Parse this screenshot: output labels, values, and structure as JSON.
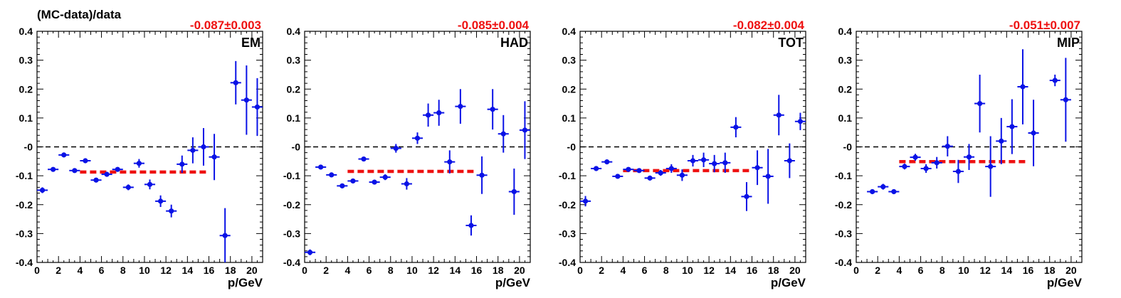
{
  "figure": {
    "ylabel": "(MC-data)/data"
  },
  "colors": {
    "points": "#0a12e6",
    "fit": "#ee1111",
    "zero_line": "#000000"
  },
  "chart_data": [
    {
      "type": "scatter",
      "panel_label": "EM",
      "fit_label": "-0.087±0.003",
      "fit_value": -0.087,
      "fit_x_range": [
        4,
        16
      ],
      "xlabel": "p/GeV",
      "xlim": [
        0,
        21
      ],
      "ylim": [
        -0.4,
        0.4
      ],
      "x_ticks": [
        0,
        2,
        4,
        6,
        8,
        10,
        12,
        14,
        16,
        18,
        20
      ],
      "y_ticks": [
        -0.4,
        -0.3,
        -0.2,
        -0.1,
        0,
        0.1,
        0.2,
        0.3,
        0.4
      ],
      "y_tick_labels": [
        "-0.4",
        "-0.3",
        "-0.2",
        "-0.1",
        "-0",
        "0.1",
        "0.2",
        "0.3",
        "0.4"
      ],
      "series": [
        {
          "points": [
            {
              "x": 0.5,
              "y": -0.15,
              "err": 0.01
            },
            {
              "x": 1.5,
              "y": -0.078,
              "err": 0.006
            },
            {
              "x": 2.5,
              "y": -0.028,
              "err": 0.006
            },
            {
              "x": 3.5,
              "y": -0.082,
              "err": 0.006
            },
            {
              "x": 4.5,
              "y": -0.048,
              "err": 0.007
            },
            {
              "x": 5.5,
              "y": -0.115,
              "err": 0.008
            },
            {
              "x": 6.5,
              "y": -0.095,
              "err": 0.008
            },
            {
              "x": 7.5,
              "y": -0.078,
              "err": 0.008
            },
            {
              "x": 8.5,
              "y": -0.14,
              "err": 0.01
            },
            {
              "x": 9.5,
              "y": -0.057,
              "err": 0.015
            },
            {
              "x": 10.5,
              "y": -0.13,
              "err": 0.017
            },
            {
              "x": 11.5,
              "y": -0.188,
              "err": 0.02
            },
            {
              "x": 12.5,
              "y": -0.222,
              "err": 0.022
            },
            {
              "x": 13.5,
              "y": -0.06,
              "err": 0.03
            },
            {
              "x": 14.5,
              "y": -0.012,
              "err": 0.045
            },
            {
              "x": 15.5,
              "y": 0.0,
              "err": 0.065
            },
            {
              "x": 16.5,
              "y": -0.035,
              "err": 0.08
            },
            {
              "x": 17.5,
              "y": -0.307,
              "err": 0.095
            },
            {
              "x": 18.5,
              "y": 0.222,
              "err": 0.075
            },
            {
              "x": 19.5,
              "y": 0.162,
              "err": 0.12
            },
            {
              "x": 20.5,
              "y": 0.138,
              "err": 0.1
            }
          ]
        }
      ]
    },
    {
      "type": "scatter",
      "panel_label": "HAD",
      "fit_label": "-0.085±0.004",
      "fit_value": -0.085,
      "fit_x_range": [
        4,
        16
      ],
      "xlabel": "p/GeV",
      "xlim": [
        0,
        21
      ],
      "ylim": [
        -0.4,
        0.4
      ],
      "x_ticks": [
        0,
        2,
        4,
        6,
        8,
        10,
        12,
        14,
        16,
        18,
        20
      ],
      "y_ticks": [
        -0.4,
        -0.3,
        -0.2,
        -0.1,
        0,
        0.1,
        0.2,
        0.3,
        0.4
      ],
      "y_tick_labels": [
        "-0.4",
        "-0.3",
        "-0.2",
        "-0.1",
        "-0",
        "0.1",
        "0.2",
        "0.3",
        "0.4"
      ],
      "series": [
        {
          "points": [
            {
              "x": 0.5,
              "y": -0.365,
              "err": 0.01
            },
            {
              "x": 1.5,
              "y": -0.07,
              "err": 0.006
            },
            {
              "x": 2.5,
              "y": -0.097,
              "err": 0.006
            },
            {
              "x": 3.5,
              "y": -0.135,
              "err": 0.006
            },
            {
              "x": 4.5,
              "y": -0.118,
              "err": 0.007
            },
            {
              "x": 5.5,
              "y": -0.042,
              "err": 0.007
            },
            {
              "x": 6.5,
              "y": -0.122,
              "err": 0.008
            },
            {
              "x": 7.5,
              "y": -0.105,
              "err": 0.01
            },
            {
              "x": 8.5,
              "y": -0.005,
              "err": 0.015
            },
            {
              "x": 9.5,
              "y": -0.128,
              "err": 0.02
            },
            {
              "x": 10.5,
              "y": 0.03,
              "err": 0.02
            },
            {
              "x": 11.5,
              "y": 0.11,
              "err": 0.04
            },
            {
              "x": 12.5,
              "y": 0.118,
              "err": 0.045
            },
            {
              "x": 13.5,
              "y": -0.052,
              "err": 0.04
            },
            {
              "x": 14.5,
              "y": 0.14,
              "err": 0.06
            },
            {
              "x": 15.5,
              "y": -0.272,
              "err": 0.035
            },
            {
              "x": 16.5,
              "y": -0.098,
              "err": 0.065
            },
            {
              "x": 17.5,
              "y": 0.13,
              "err": 0.07
            },
            {
              "x": 18.5,
              "y": 0.045,
              "err": 0.065
            },
            {
              "x": 19.5,
              "y": -0.155,
              "err": 0.08
            },
            {
              "x": 20.5,
              "y": 0.058,
              "err": 0.1
            }
          ]
        }
      ]
    },
    {
      "type": "scatter",
      "panel_label": "TOT",
      "fit_label": "-0.082±0.004",
      "fit_value": -0.082,
      "fit_x_range": [
        4,
        16
      ],
      "xlabel": "p/GeV",
      "xlim": [
        0,
        21
      ],
      "ylim": [
        -0.4,
        0.4
      ],
      "x_ticks": [
        0,
        2,
        4,
        6,
        8,
        10,
        12,
        14,
        16,
        18,
        20
      ],
      "y_ticks": [
        -0.4,
        -0.3,
        -0.2,
        -0.1,
        0,
        0.1,
        0.2,
        0.3,
        0.4
      ],
      "y_tick_labels": [
        "-0.4",
        "-0.3",
        "-0.2",
        "-0.1",
        "-0",
        "0.1",
        "0.2",
        "0.3",
        "0.4"
      ],
      "series": [
        {
          "points": [
            {
              "x": 0.5,
              "y": -0.188,
              "err": 0.018
            },
            {
              "x": 1.5,
              "y": -0.075,
              "err": 0.006
            },
            {
              "x": 2.5,
              "y": -0.052,
              "err": 0.006
            },
            {
              "x": 3.5,
              "y": -0.102,
              "err": 0.006
            },
            {
              "x": 4.5,
              "y": -0.078,
              "err": 0.006
            },
            {
              "x": 5.5,
              "y": -0.082,
              "err": 0.007
            },
            {
              "x": 6.5,
              "y": -0.108,
              "err": 0.008
            },
            {
              "x": 7.5,
              "y": -0.09,
              "err": 0.01
            },
            {
              "x": 8.5,
              "y": -0.075,
              "err": 0.015
            },
            {
              "x": 9.5,
              "y": -0.098,
              "err": 0.02
            },
            {
              "x": 10.5,
              "y": -0.048,
              "err": 0.02
            },
            {
              "x": 11.5,
              "y": -0.045,
              "err": 0.025
            },
            {
              "x": 12.5,
              "y": -0.058,
              "err": 0.03
            },
            {
              "x": 13.5,
              "y": -0.055,
              "err": 0.035
            },
            {
              "x": 14.5,
              "y": 0.068,
              "err": 0.035
            },
            {
              "x": 15.5,
              "y": -0.172,
              "err": 0.05
            },
            {
              "x": 16.5,
              "y": -0.072,
              "err": 0.06
            },
            {
              "x": 17.5,
              "y": -0.102,
              "err": 0.095
            },
            {
              "x": 18.5,
              "y": 0.11,
              "err": 0.07
            },
            {
              "x": 19.5,
              "y": -0.048,
              "err": 0.06
            },
            {
              "x": 20.5,
              "y": 0.088,
              "err": 0.03
            }
          ]
        }
      ]
    },
    {
      "type": "scatter",
      "panel_label": "MIP",
      "fit_label": "-0.051±0.007",
      "fit_value": -0.051,
      "fit_x_range": [
        4,
        16
      ],
      "xlabel": "p/GeV",
      "xlim": [
        0,
        21
      ],
      "ylim": [
        -0.4,
        0.4
      ],
      "x_ticks": [
        0,
        2,
        4,
        6,
        8,
        10,
        12,
        14,
        16,
        18,
        20
      ],
      "y_ticks": [
        -0.4,
        -0.3,
        -0.2,
        -0.1,
        0,
        0.1,
        0.2,
        0.3,
        0.4
      ],
      "y_tick_labels": [
        "-0.4",
        "-0.3",
        "-0.2",
        "-0.1",
        "-0",
        "0.1",
        "0.2",
        "0.3",
        "0.4"
      ],
      "series": [
        {
          "points": [
            {
              "x": 1.5,
              "y": -0.155,
              "err": 0.006
            },
            {
              "x": 2.5,
              "y": -0.138,
              "err": 0.01
            },
            {
              "x": 3.5,
              "y": -0.155,
              "err": 0.008
            },
            {
              "x": 4.5,
              "y": -0.068,
              "err": 0.01
            },
            {
              "x": 5.5,
              "y": -0.036,
              "err": 0.012
            },
            {
              "x": 6.5,
              "y": -0.075,
              "err": 0.015
            },
            {
              "x": 7.5,
              "y": -0.055,
              "err": 0.02
            },
            {
              "x": 8.5,
              "y": 0.002,
              "err": 0.035
            },
            {
              "x": 9.5,
              "y": -0.085,
              "err": 0.04
            },
            {
              "x": 10.5,
              "y": -0.035,
              "err": 0.045
            },
            {
              "x": 11.5,
              "y": 0.15,
              "err": 0.1
            },
            {
              "x": 12.5,
              "y": -0.068,
              "err": 0.105
            },
            {
              "x": 13.5,
              "y": 0.02,
              "err": 0.08
            },
            {
              "x": 14.5,
              "y": 0.07,
              "err": 0.095
            },
            {
              "x": 15.5,
              "y": 0.208,
              "err": 0.13
            },
            {
              "x": 16.5,
              "y": 0.048,
              "err": 0.115
            },
            {
              "x": 18.5,
              "y": 0.23,
              "err": 0.02
            },
            {
              "x": 19.5,
              "y": 0.163,
              "err": 0.145
            }
          ]
        }
      ]
    }
  ]
}
